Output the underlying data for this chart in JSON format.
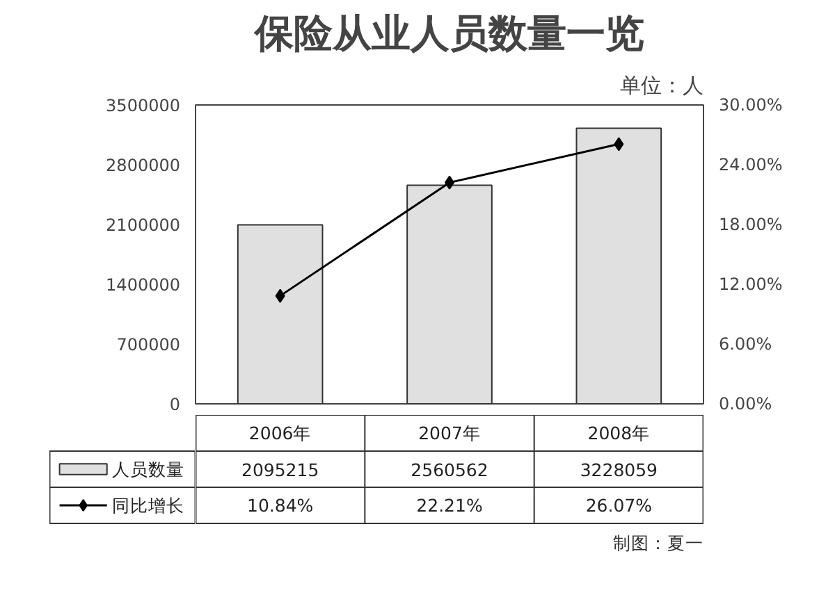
{
  "chart_data": {
    "type": "bar",
    "title": "保险从业人员数量一览",
    "subtitle": "单位：人",
    "categories": [
      "2006年",
      "2007年",
      "2008年"
    ],
    "series": [
      {
        "name": "人员数量",
        "color": "#e0e0e0",
        "values": [
          2095215,
          2560562,
          3228059
        ],
        "value_labels": [
          "2095215",
          "2560562",
          "3228059"
        ]
      },
      {
        "name": "同比增长",
        "type": "line",
        "axis": "y2",
        "color": "#000000",
        "marker": "diamond",
        "values": [
          10.84,
          22.21,
          26.07
        ],
        "value_labels": [
          "10.84%",
          "22.21%",
          "26.07%"
        ]
      }
    ],
    "ylim": [
      0,
      3500000
    ],
    "yticks": [
      0,
      700000,
      1400000,
      2100000,
      2800000,
      3500000
    ],
    "y2lim": [
      0,
      30
    ],
    "y2ticks": [
      {
        "value": 0,
        "label": "0.00%"
      },
      {
        "value": 6,
        "label": "6.00%"
      },
      {
        "value": 12,
        "label": "12.00%"
      },
      {
        "value": 18,
        "label": "18.00%"
      },
      {
        "value": 24,
        "label": "24.00%"
      },
      {
        "value": 30,
        "label": "30.00%"
      }
    ],
    "legend": "bottom left",
    "annotations": [
      "制图：夏一"
    ]
  }
}
